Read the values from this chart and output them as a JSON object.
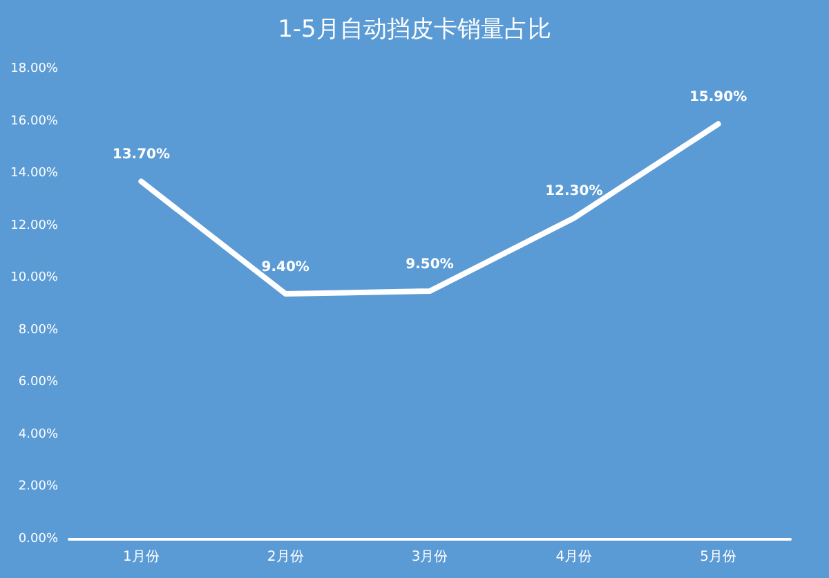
{
  "chart_data": {
    "type": "line",
    "title": "1-5月自动挡皮卡销量占比",
    "categories": [
      "1月份",
      "2月份",
      "3月份",
      "4月份",
      "5月份"
    ],
    "values": [
      13.7,
      9.4,
      9.5,
      12.3,
      15.9
    ],
    "value_labels": [
      "13.70%",
      "9.40%",
      "9.50%",
      "12.30%",
      "15.90%"
    ],
    "color": "#ffffff",
    "ylim": [
      0,
      18
    ],
    "yticks": [
      {
        "value": 0,
        "label": "0.00%"
      },
      {
        "value": 2,
        "label": "2.00%"
      },
      {
        "value": 4,
        "label": "4.00%"
      },
      {
        "value": 6,
        "label": "6.00%"
      },
      {
        "value": 8,
        "label": "8.00%"
      },
      {
        "value": 10,
        "label": "10.00%"
      },
      {
        "value": 12,
        "label": "12.00%"
      },
      {
        "value": 14,
        "label": "14.00%"
      },
      {
        "value": 16,
        "label": "16.00%"
      },
      {
        "value": 18,
        "label": "18.00%"
      }
    ],
    "grid": false,
    "marker": "none",
    "line_style": "solid"
  }
}
